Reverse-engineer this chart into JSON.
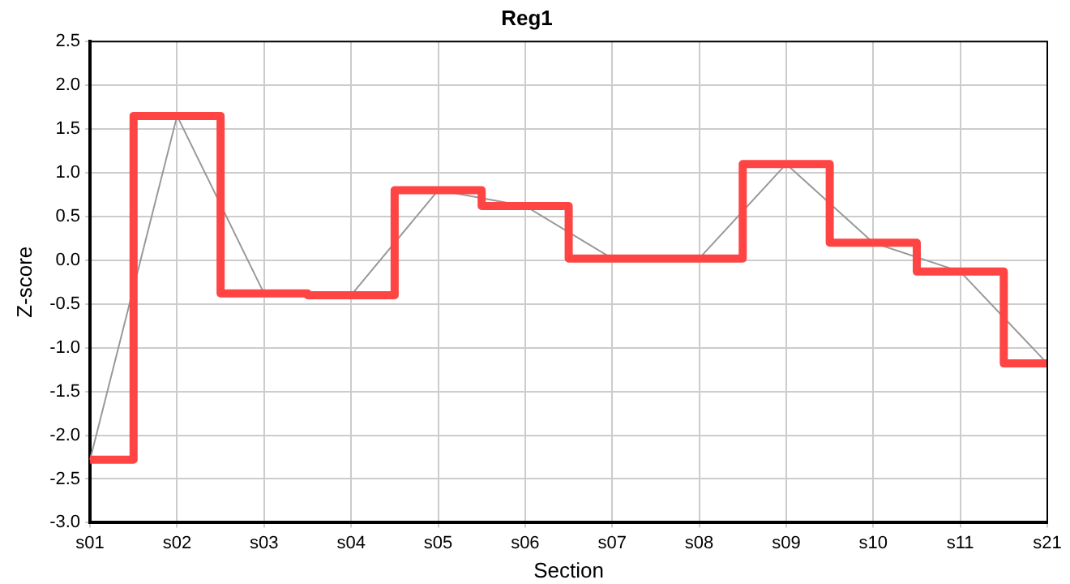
{
  "chart_data": {
    "type": "line",
    "title": "Reg1",
    "xlabel": "Section",
    "ylabel": "Z-score",
    "categories": [
      "s01",
      "s02",
      "s03",
      "s04",
      "s05",
      "s06",
      "s07",
      "s08",
      "s09",
      "s10",
      "s11",
      "s21"
    ],
    "series": [
      {
        "type": "step",
        "color": "#ff4444",
        "values": [
          -2.28,
          1.65,
          -0.38,
          -0.4,
          0.8,
          0.62,
          0.02,
          0.02,
          1.1,
          0.2,
          -0.13,
          -1.18
        ]
      },
      {
        "type": "line",
        "color": "#999999",
        "values": [
          -2.28,
          1.65,
          -0.38,
          -0.4,
          0.8,
          0.62,
          0.02,
          0.02,
          1.1,
          0.2,
          -0.13,
          -1.18
        ]
      }
    ],
    "ylim": [
      -3,
      2.5
    ],
    "yticks": [
      {
        "value": -3,
        "label": "-3.0"
      },
      {
        "value": -2.5,
        "label": "-2.5"
      },
      {
        "value": -2,
        "label": "-2.0"
      },
      {
        "value": -1.5,
        "label": "-1.5"
      },
      {
        "value": -1,
        "label": "-1.0"
      },
      {
        "value": -0.5,
        "label": "-0.5"
      },
      {
        "value": 0,
        "label": "0.0"
      },
      {
        "value": 0.5,
        "label": "0.5"
      },
      {
        "value": 1,
        "label": "1.0"
      },
      {
        "value": 1.5,
        "label": "1.5"
      },
      {
        "value": 2,
        "label": "2.0"
      },
      {
        "value": 2.5,
        "label": "2.5"
      }
    ],
    "grid": true,
    "legend": false,
    "marker": "none"
  }
}
